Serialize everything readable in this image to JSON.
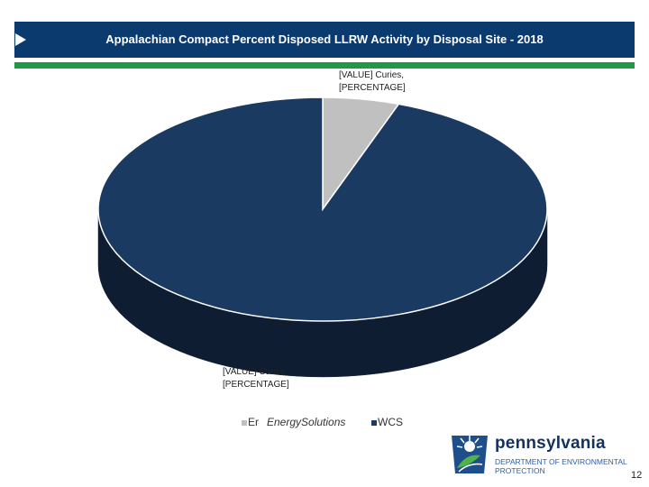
{
  "header": {
    "title": "Appalachian Compact Percent Disposed LLRW Activity by Disposal Site - 2018"
  },
  "chart_data": {
    "type": "pie",
    "title": "Appalachian Compact Percent Disposed LLRW Activity by Disposal Site - 2018",
    "style": "3d",
    "series": [
      {
        "name": "EnergySolutions",
        "value": 5.5,
        "color": "#c0c0c0"
      },
      {
        "name": "WCS",
        "value": 94.5,
        "color": "#1b3a62"
      }
    ],
    "labels": [
      {
        "series": "EnergySolutions",
        "lines": [
          "[VALUE] Curies,",
          "[PERCENTAGE]"
        ]
      },
      {
        "series": "WCS",
        "lines": [
          "[VALUE] Curies,",
          "[PERCENTAGE]"
        ]
      }
    ],
    "legend": {
      "position": "bottom",
      "entries": [
        {
          "prefix": "Er",
          "text": "EnergySolutions",
          "color": "#c0c0c0"
        },
        {
          "prefix": "",
          "text": "WCS",
          "color": "#1b3a62"
        }
      ]
    }
  },
  "logo": {
    "name": "pennsylvania",
    "dept_line1": "DEPARTMENT OF ENVIRONMENTAL",
    "dept_line2": "PROTECTION"
  },
  "footer": {
    "page_number": "12"
  }
}
